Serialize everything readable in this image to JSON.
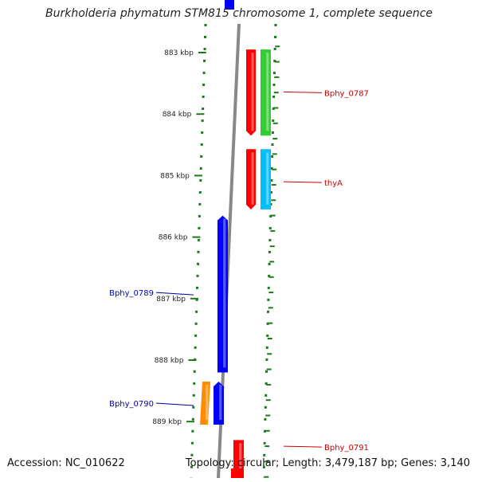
{
  "map": {
    "title": "Burkholderia phymatum STM815 chromosome 1, complete sequence",
    "accession_label": "Accession: NC_010622",
    "summary_label": "Topology: circular; Length: 3,479,187 bp; Genes: 3,140",
    "ticks": [
      {
        "label": "883 kbp",
        "kbp": 883
      },
      {
        "label": "884 kbp",
        "kbp": 884
      },
      {
        "label": "885 kbp",
        "kbp": 885
      },
      {
        "label": "886 kbp",
        "kbp": 886
      },
      {
        "label": "887 kbp",
        "kbp": 887
      },
      {
        "label": "888 kbp",
        "kbp": 888
      },
      {
        "label": "889 kbp",
        "kbp": 889
      }
    ],
    "features": [
      {
        "name": "gene-reverse-1",
        "strand": "reverse",
        "start_kbp": 882.95,
        "end_kbp": 884.35,
        "color": "#ff0000"
      },
      {
        "name": "cds-bphy-0787",
        "strand": "reverse-outer",
        "start_kbp": 882.95,
        "end_kbp": 884.35,
        "color": "#33cc33"
      },
      {
        "name": "gene-reverse-2",
        "strand": "reverse",
        "start_kbp": 884.57,
        "end_kbp": 885.55,
        "color": "#ff0000"
      },
      {
        "name": "cds-thya",
        "strand": "reverse-outer",
        "start_kbp": 884.57,
        "end_kbp": 885.55,
        "color": "#00bfff"
      },
      {
        "name": "gene-bphy-0789",
        "strand": "forward",
        "start_kbp": 885.65,
        "end_kbp": 888.2,
        "color": "#0000ff"
      },
      {
        "name": "cds-bphy-0790",
        "strand": "forward-outer",
        "start_kbp": 888.35,
        "end_kbp": 889.05,
        "color": "#ff8c00"
      },
      {
        "name": "gene-bphy-0790",
        "strand": "forward",
        "start_kbp": 888.35,
        "end_kbp": 889.05,
        "color": "#0000ff"
      },
      {
        "name": "gene-bphy-0791",
        "strand": "reverse",
        "start_kbp": 889.3,
        "end_kbp": 890.0,
        "color": "#ff0000"
      }
    ],
    "labels": [
      {
        "text": "Bphy_0787",
        "side": "right",
        "kbp": 883.64,
        "color": "#cc0000"
      },
      {
        "text": "thyA",
        "side": "right",
        "kbp": 885.1,
        "color": "#cc0000"
      },
      {
        "text": "Bphy_0789",
        "side": "left",
        "kbp": 886.9,
        "color": "#0000aa"
      },
      {
        "text": "Bphy_0790",
        "side": "left",
        "kbp": 888.7,
        "color": "#0000aa"
      },
      {
        "text": "Bphy_0791",
        "side": "right",
        "kbp": 889.4,
        "color": "#cc0000"
      }
    ],
    "colors": {
      "backbone": "#888888",
      "grid": "#1a7a1a",
      "tick_text": "#222222"
    }
  }
}
